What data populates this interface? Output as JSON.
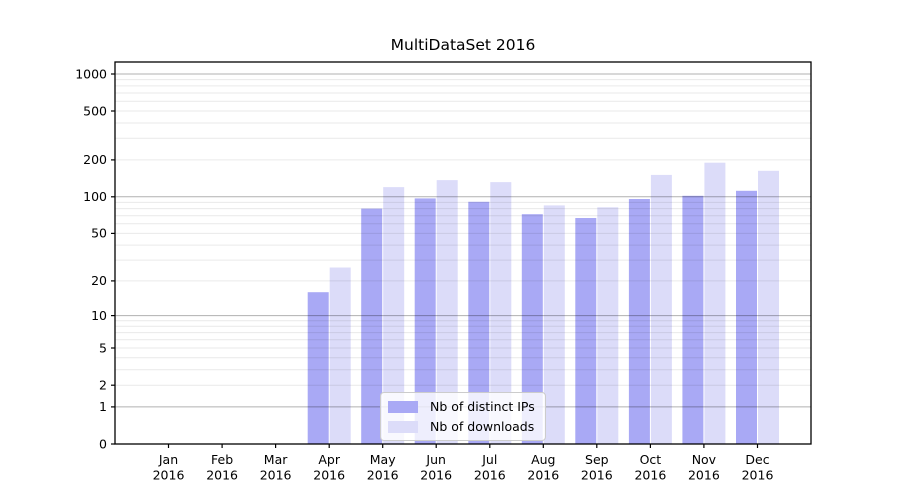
{
  "chart_data": {
    "type": "bar",
    "title": "MultiDataSet 2016",
    "year": "2016",
    "categories": [
      "Jan",
      "Feb",
      "Mar",
      "Apr",
      "May",
      "Jun",
      "Jul",
      "Aug",
      "Sep",
      "Oct",
      "Nov",
      "Dec"
    ],
    "series": [
      {
        "name": "Nb of distinct IPs",
        "color": "#a9a9f5",
        "values": [
          0,
          0,
          0,
          16,
          80,
          97,
          91,
          72,
          67,
          96,
          102,
          112
        ]
      },
      {
        "name": "Nb of downloads",
        "color": "#dcdcf9",
        "values": [
          0,
          0,
          0,
          26,
          120,
          137,
          132,
          85,
          82,
          151,
          190,
          163
        ]
      }
    ],
    "yticks": [
      0,
      1,
      2,
      5,
      10,
      20,
      50,
      100,
      200,
      500,
      1000
    ],
    "scale": "log10(value+1)",
    "ylim": [
      0,
      1250
    ],
    "grid": {
      "on": true,
      "major_at": [
        1,
        10,
        100,
        1000
      ],
      "minor_pattern": "2-9 per decade",
      "major_color": "#b0b0b0",
      "minor_color": "#e9e9e9"
    },
    "legend": {
      "position": "lower center-left inside plot"
    }
  }
}
